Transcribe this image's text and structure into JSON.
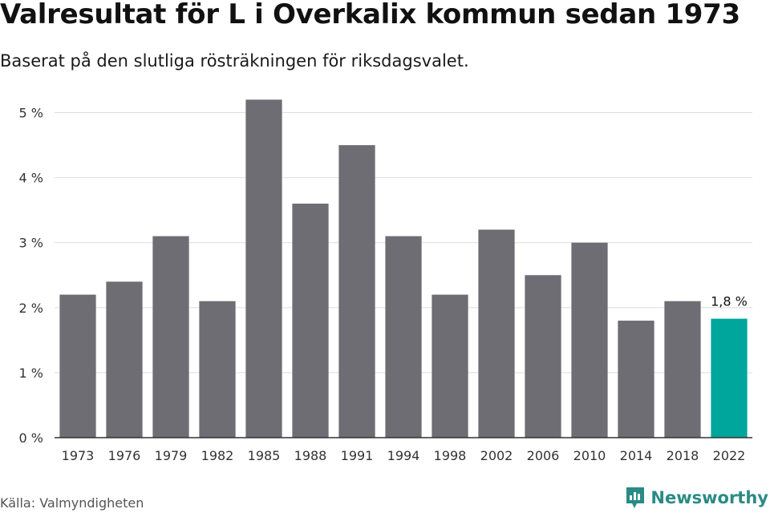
{
  "title": "Valresultat för L i Overkalix kommun sedan 1973",
  "subtitle": "Baserat på den slutliga rösträkningen för riksdagsvalet.",
  "source": "Källa: Valmyndigheten",
  "brand": {
    "name": "Newsworthy",
    "icon": "newsworthy-logo-icon"
  },
  "colors": {
    "bar": "#6e6d73",
    "highlight": "#00a69c",
    "grid": "#dddddd",
    "axis": "#333333"
  },
  "chart_data": {
    "type": "bar",
    "categories": [
      "1973",
      "1976",
      "1979",
      "1982",
      "1985",
      "1988",
      "1991",
      "1994",
      "1998",
      "2002",
      "2006",
      "2010",
      "2014",
      "2018",
      "2022"
    ],
    "values": [
      2.2,
      2.4,
      3.1,
      2.1,
      5.2,
      3.6,
      4.5,
      3.1,
      2.2,
      3.2,
      2.5,
      3.0,
      1.8,
      2.1,
      1.83
    ],
    "ylim": [
      0,
      5.5
    ],
    "yticks": [
      0,
      1,
      2,
      3,
      4,
      5
    ],
    "ytick_labels": [
      "0 %",
      "1 %",
      "2 %",
      "3 %",
      "4 %",
      "5 %"
    ],
    "highlight_index": 14,
    "data_labels": [
      {
        "index": 14,
        "text": "1,8 %"
      }
    ],
    "grid": true,
    "xlabel": "",
    "ylabel": ""
  }
}
